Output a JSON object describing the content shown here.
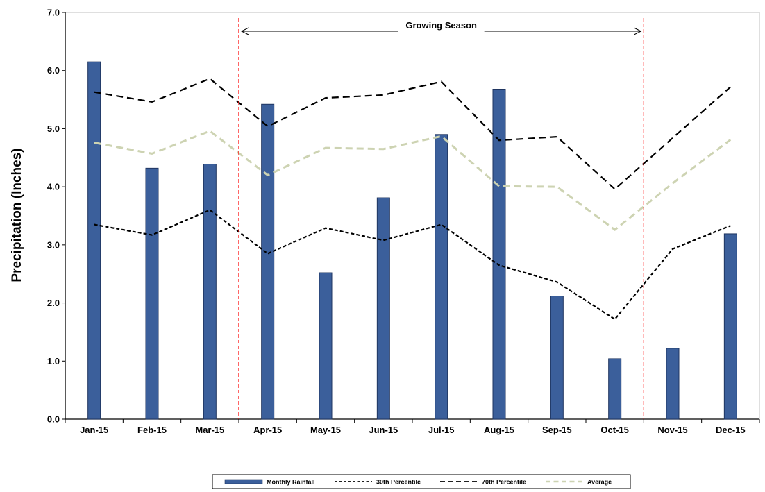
{
  "chart_data": {
    "type": "bar",
    "title": "",
    "xlabel": "",
    "ylabel": "Precipitation (Inches)",
    "ylim": [
      0,
      7
    ],
    "yticks": [
      "0.0",
      "1.0",
      "2.0",
      "3.0",
      "4.0",
      "5.0",
      "6.0",
      "7.0"
    ],
    "categories": [
      "Jan-15",
      "Feb-15",
      "Mar-15",
      "Apr-15",
      "May-15",
      "Jun-15",
      "Jul-15",
      "Aug-15",
      "Sep-15",
      "Oct-15",
      "Nov-15",
      "Dec-15"
    ],
    "series": [
      {
        "name": "Monthly Rainfall",
        "type": "bar",
        "color": "#3b5f9b",
        "values": [
          6.15,
          4.32,
          4.39,
          5.42,
          2.52,
          3.81,
          4.9,
          5.68,
          2.12,
          1.04,
          1.22,
          3.19
        ]
      },
      {
        "name": "30th Percentile",
        "type": "line",
        "dash": "short",
        "color": "#000000",
        "values": [
          3.35,
          3.17,
          3.6,
          2.85,
          3.29,
          3.08,
          3.35,
          2.65,
          2.36,
          1.72,
          2.93,
          3.33
        ]
      },
      {
        "name": "70th Percentile",
        "type": "line",
        "dash": "long",
        "color": "#000000",
        "values": [
          5.63,
          5.46,
          5.86,
          5.04,
          5.53,
          5.58,
          5.81,
          4.8,
          4.86,
          3.96,
          4.84,
          5.72
        ]
      },
      {
        "name": "Average",
        "type": "line",
        "dash": "long",
        "color": "#cdd3b2",
        "values": [
          4.76,
          4.57,
          4.96,
          4.2,
          4.67,
          4.65,
          4.87,
          4.01,
          4.0,
          3.26,
          4.06,
          4.81
        ]
      }
    ],
    "annotation": {
      "label": "Growing Season",
      "start_boundary": "Mar-15|Apr-15",
      "end_boundary": "Oct-15|Nov-15",
      "line_color": "#ff0000"
    },
    "legend_position": "bottom",
    "grid": false
  }
}
